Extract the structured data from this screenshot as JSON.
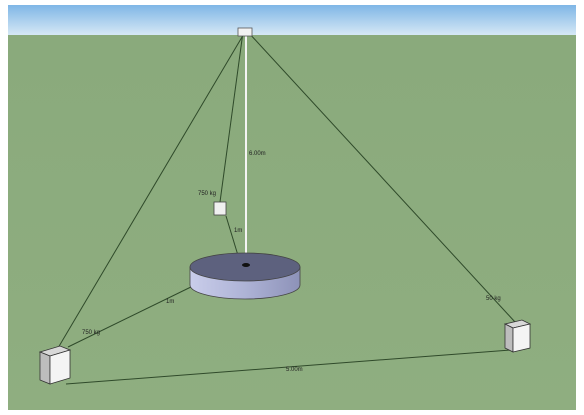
{
  "labels": {
    "top_mass": "750 kg",
    "left_mass": "750 kg",
    "right_mass": "50 kg",
    "height": "6.00m",
    "base": "5.00m",
    "short_vertical": "1m",
    "left_arm": "1m"
  }
}
